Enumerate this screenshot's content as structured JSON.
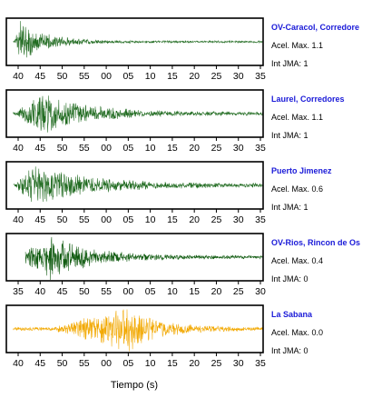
{
  "chart_data": {
    "type": "line",
    "xlabel": "Tiempo (s)",
    "panels": [
      {
        "station": "OV-Caracol, Corredore",
        "acel_label": "Acel. Max. 1.1",
        "int_label": "Int JMA: 1",
        "color": "#1f6a1f",
        "tick_labels": [
          "40",
          "45",
          "50",
          "55",
          "00",
          "05",
          "10",
          "15",
          "20",
          "25",
          "30",
          "35"
        ],
        "tick_start": 40,
        "onset": 38.5,
        "peak_time": 41,
        "amplitude": 0.9,
        "decay": 0.1,
        "noise": 0.05
      },
      {
        "station": "Laurel, Corredores",
        "acel_label": "Acel. Max. 1.1",
        "int_label": "Int JMA: 1",
        "color": "#1f6a1f",
        "tick_labels": [
          "40",
          "45",
          "50",
          "55",
          "00",
          "05",
          "10",
          "15",
          "20",
          "25",
          "30",
          "35"
        ],
        "tick_start": 40,
        "onset": 39,
        "peak_time": 50,
        "amplitude": 0.85,
        "decay": 0.055,
        "noise": 0.08
      },
      {
        "station": "Puerto Jimenez",
        "acel_label": "Acel. Max. 0.6",
        "int_label": "Int JMA: 1",
        "color": "#1f6a1f",
        "tick_labels": [
          "40",
          "45",
          "50",
          "55",
          "00",
          "05",
          "10",
          "15",
          "20",
          "25",
          "30",
          "35"
        ],
        "tick_start": 40,
        "onset": 38.5,
        "peak_time": 47,
        "amplitude": 0.85,
        "decay": 0.045,
        "noise": 0.08
      },
      {
        "station": "OV-Rios, Rincon de Os",
        "acel_label": "Acel. Max. 0.4",
        "int_label": "Int JMA: 0",
        "color": "#0f5a0f",
        "tick_labels": [
          "35",
          "40",
          "45",
          "50",
          "55",
          "00",
          "05",
          "10",
          "15",
          "20",
          "25",
          "30"
        ],
        "tick_start": 35,
        "onset": 35,
        "peak_time": 48,
        "amplitude": 0.95,
        "decay": 0.06,
        "noise": 0.07
      },
      {
        "station": "La Sabana",
        "acel_label": "Acel. Max. 0.0",
        "int_label": "Int JMA: 0",
        "color": "#f2a800",
        "tick_labels": [
          "40",
          "45",
          "50",
          "55",
          "00",
          "05",
          "10",
          "15",
          "20",
          "25",
          "30",
          "35"
        ],
        "tick_start": 40,
        "onset": 54,
        "peak_time": 85,
        "amplitude": 0.95,
        "decay": 0.08,
        "noise": 0.08
      }
    ]
  }
}
